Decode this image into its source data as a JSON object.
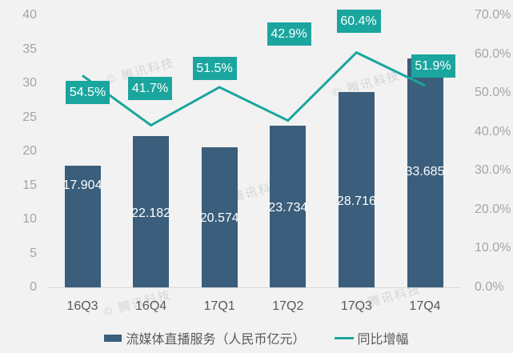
{
  "watermark": {
    "symbol": "©",
    "text": "腾讯科技"
  },
  "chart_data": {
    "type": "bar",
    "combo": "bar+line dual-axis",
    "title": "",
    "categories": [
      "16Q3",
      "16Q4",
      "17Q1",
      "17Q2",
      "17Q3",
      "17Q4"
    ],
    "series": [
      {
        "name": "流媒体直播服务（人民币亿元）",
        "type": "bar",
        "yaxis": "left",
        "color": "#3A5E7C",
        "values": [
          17.904,
          22.182,
          20.574,
          23.734,
          28.716,
          33.685
        ],
        "labels": [
          "17.904",
          "22.182",
          "20.574",
          "23.734",
          "28.716",
          "33.685"
        ]
      },
      {
        "name": "同比增幅",
        "type": "line",
        "yaxis": "right",
        "color": "#1AA69E",
        "values": [
          54.5,
          41.7,
          51.5,
          42.9,
          60.4,
          51.9
        ],
        "labels": [
          "54.5%",
          "41.7%",
          "51.5%",
          "42.9%",
          "60.4%",
          "51.9%"
        ]
      }
    ],
    "left_axis": {
      "min": 0,
      "max": 40,
      "step": 5,
      "tick_labels": [
        "0",
        "5",
        "10",
        "15",
        "20",
        "25",
        "30",
        "35",
        "40"
      ]
    },
    "right_axis": {
      "min": 0,
      "max": 70,
      "step": 10,
      "tick_labels": [
        "0.0%",
        "10.0%",
        "20.0%",
        "30.0%",
        "40.0%",
        "50.0%",
        "60.0%",
        "70.0%"
      ]
    },
    "grid": false,
    "legend_position": "bottom",
    "background": "#F2F2F2",
    "axis_line_color": "#D9D9D9",
    "tick_color": "#A5A5A5",
    "category_label_color": "#595959"
  }
}
